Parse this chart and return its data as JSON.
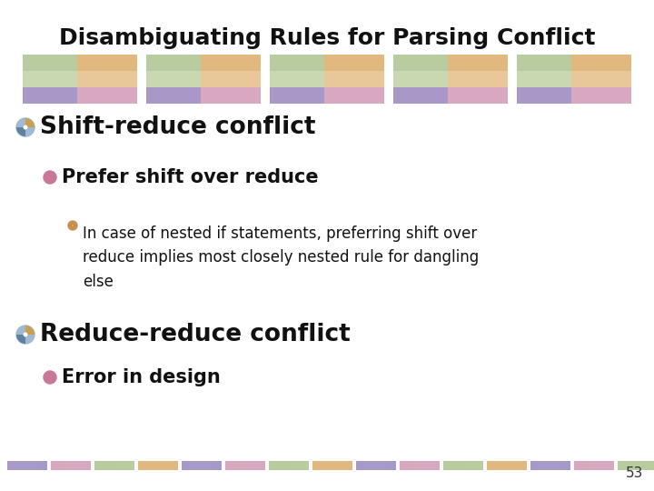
{
  "title": "Disambiguating Rules for Parsing Conflict",
  "title_fontsize": 18,
  "title_fontweight": "bold",
  "background_color": "#ffffff",
  "slide_number": "53",
  "green_c": "#b8cca0",
  "orange_c": "#e0b880",
  "pink_c": "#d8a8c0",
  "purple_c": "#a898c8",
  "bullet1_text": "Shift-reduce conflict",
  "bullet1_fontsize": 19,
  "bullet2_text": "Prefer shift over reduce",
  "bullet2_fontsize": 15,
  "bullet3_text": "In case of nested if statements, preferring shift over\nreduce implies most closely nested rule for dangling\nelse",
  "bullet3_fontsize": 12,
  "bullet4_text": "Reduce-reduce conflict",
  "bullet4_fontsize": 19,
  "bullet5_text": "Error in design",
  "bullet5_fontsize": 15
}
